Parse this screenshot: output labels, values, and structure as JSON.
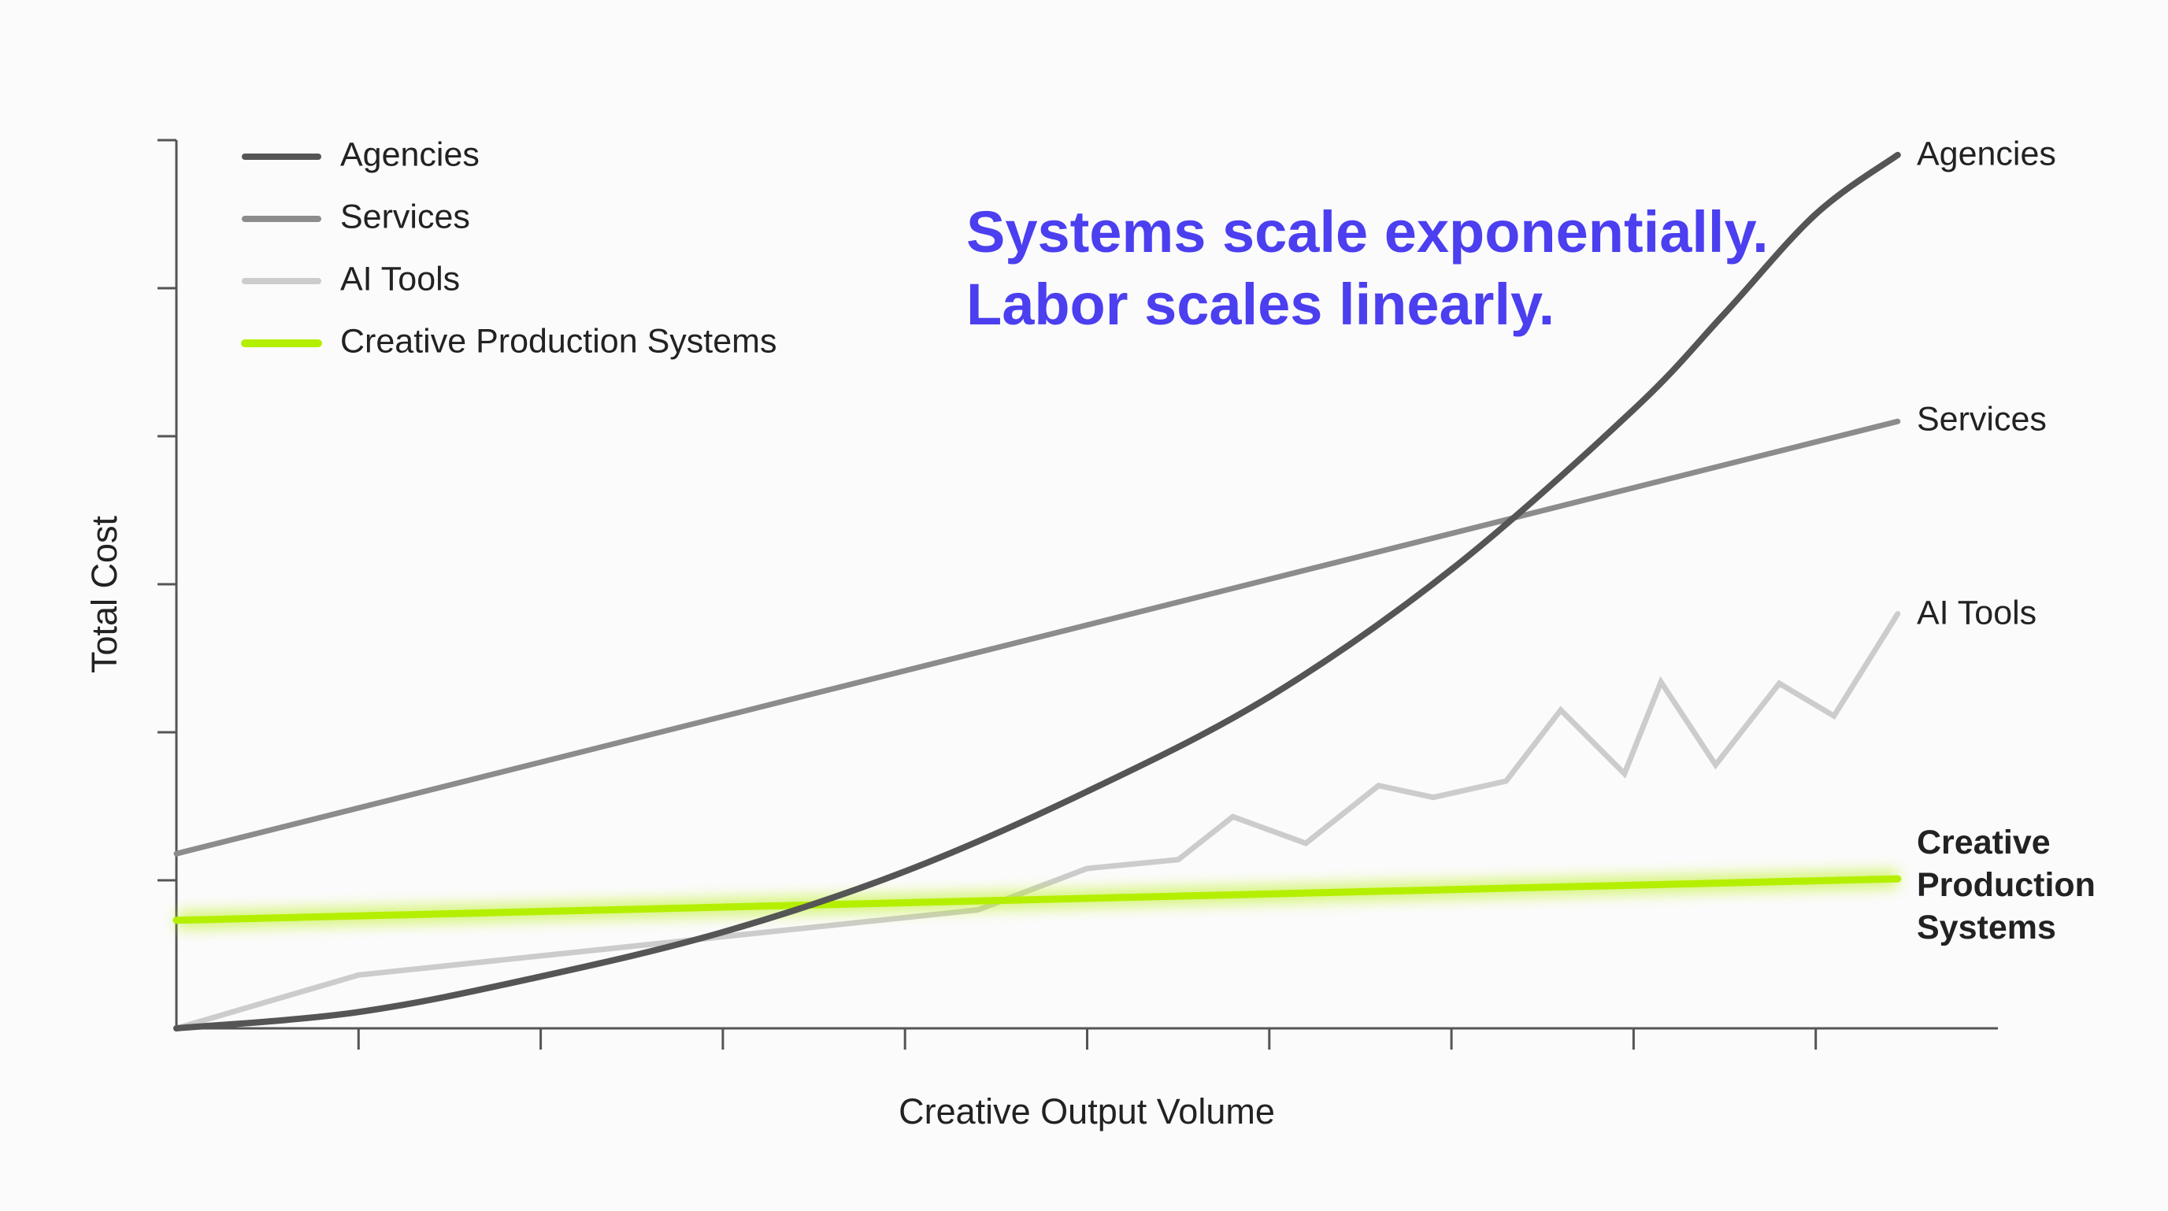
{
  "chart_data": {
    "type": "line",
    "title": "",
    "annotation": [
      "Systems scale exponentially.",
      "Labor scales linearly."
    ],
    "xlabel": "Creative Output Volume",
    "ylabel": "Total Cost",
    "xlim": [
      0,
      10
    ],
    "ylim": [
      0,
      6
    ],
    "x_ticks": [
      1,
      2,
      3,
      4,
      5,
      6,
      7,
      8,
      9
    ],
    "y_ticks": [
      1,
      2,
      3,
      4,
      5,
      6
    ],
    "tick_labels_shown": false,
    "grid": false,
    "legend_position": "top-left",
    "series": [
      {
        "name": "Agencies",
        "color": "#555555",
        "style": "exponential curve",
        "x": [
          0,
          1,
          2,
          3,
          4,
          5,
          6,
          7,
          8,
          8.5,
          9,
          9.45
        ],
        "y": [
          0,
          0.11,
          0.35,
          0.65,
          1.06,
          1.6,
          2.24,
          3.1,
          4.18,
          4.83,
          5.5,
          5.9
        ]
      },
      {
        "name": "Services",
        "color": "#8c8c8c",
        "style": "straight line",
        "x": [
          0,
          9.45
        ],
        "y": [
          1.18,
          4.1
        ]
      },
      {
        "name": "AI Tools",
        "color": "#cccccc",
        "style": "jagged line",
        "x": [
          0,
          1,
          4.4,
          5,
          5.5,
          5.8,
          6.2,
          6.6,
          6.9,
          7.3,
          7.6,
          7.95,
          8.15,
          8.45,
          8.8,
          9.1,
          9.45
        ],
        "y": [
          0,
          0.36,
          0.8,
          1.08,
          1.14,
          1.43,
          1.25,
          1.64,
          1.56,
          1.67,
          2.15,
          1.72,
          2.34,
          1.78,
          2.33,
          2.11,
          2.8
        ]
      },
      {
        "name": "Creative Production Systems",
        "color": "#b4ef00",
        "style": "flat glowing line",
        "x": [
          0,
          9.45
        ],
        "y": [
          0.73,
          1.01
        ]
      }
    ]
  }
}
